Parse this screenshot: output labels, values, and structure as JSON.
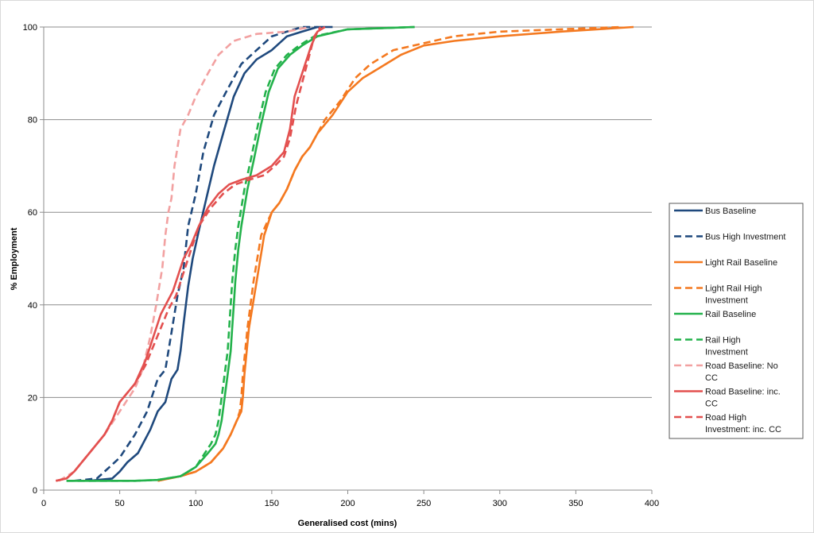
{
  "chart_data": {
    "type": "line",
    "title": "",
    "xlabel": "Generalised cost (mins)",
    "ylabel": "% Employment",
    "xlim": [
      0,
      400
    ],
    "ylim": [
      0,
      100
    ],
    "x_ticks": [
      0,
      50,
      100,
      150,
      200,
      250,
      300,
      350,
      400
    ],
    "y_ticks": [
      0,
      20,
      40,
      60,
      80,
      100
    ],
    "grid": "horizontal",
    "legend_position": "right",
    "series": [
      {
        "name": "Bus Baseline",
        "color": "#1f497d",
        "dash": "solid",
        "points": [
          [
            30,
            2
          ],
          [
            45,
            2.5
          ],
          [
            50,
            4
          ],
          [
            55,
            6
          ],
          [
            62,
            8
          ],
          [
            70,
            13
          ],
          [
            75,
            17
          ],
          [
            80,
            19
          ],
          [
            84,
            24
          ],
          [
            88,
            26
          ],
          [
            90,
            30
          ],
          [
            92,
            36
          ],
          [
            95,
            44
          ],
          [
            98,
            50
          ],
          [
            102,
            56
          ],
          [
            107,
            63
          ],
          [
            112,
            70
          ],
          [
            118,
            77
          ],
          [
            125,
            85
          ],
          [
            132,
            90
          ],
          [
            140,
            93
          ],
          [
            150,
            95
          ],
          [
            160,
            98
          ],
          [
            170,
            99
          ],
          [
            180,
            100
          ],
          [
            190,
            100
          ]
        ]
      },
      {
        "name": "Bus High Investment",
        "color": "#1f497d",
        "dash": "dashed",
        "points": [
          [
            20,
            2
          ],
          [
            35,
            2.5
          ],
          [
            40,
            4
          ],
          [
            50,
            7
          ],
          [
            60,
            12
          ],
          [
            68,
            17
          ],
          [
            75,
            24
          ],
          [
            80,
            26
          ],
          [
            84,
            34
          ],
          [
            88,
            42
          ],
          [
            92,
            48
          ],
          [
            95,
            57
          ],
          [
            100,
            64
          ],
          [
            105,
            73
          ],
          [
            112,
            81
          ],
          [
            120,
            86
          ],
          [
            130,
            92
          ],
          [
            140,
            95
          ],
          [
            150,
            98
          ],
          [
            160,
            99
          ],
          [
            170,
            100
          ],
          [
            180,
            100
          ]
        ]
      },
      {
        "name": "Light Rail Baseline",
        "color": "#f47920",
        "dash": "solid",
        "points": [
          [
            75,
            2
          ],
          [
            90,
            3
          ],
          [
            100,
            4
          ],
          [
            110,
            6
          ],
          [
            118,
            9
          ],
          [
            123,
            12
          ],
          [
            127,
            15
          ],
          [
            130,
            17
          ],
          [
            131,
            20
          ],
          [
            132,
            25
          ],
          [
            135,
            35
          ],
          [
            140,
            45
          ],
          [
            145,
            55
          ],
          [
            150,
            60
          ],
          [
            155,
            62
          ],
          [
            160,
            65
          ],
          [
            165,
            69
          ],
          [
            170,
            72
          ],
          [
            175,
            74
          ],
          [
            180,
            77
          ],
          [
            190,
            81
          ],
          [
            200,
            86
          ],
          [
            210,
            89
          ],
          [
            220,
            91
          ],
          [
            235,
            94
          ],
          [
            250,
            96
          ],
          [
            270,
            97
          ],
          [
            300,
            98
          ],
          [
            340,
            99
          ],
          [
            388,
            100
          ]
        ]
      },
      {
        "name": "Light Rail High Investment",
        "color": "#f47920",
        "dash": "dashed",
        "points": [
          [
            75,
            2
          ],
          [
            90,
            3
          ],
          [
            100,
            4
          ],
          [
            110,
            6
          ],
          [
            118,
            9
          ],
          [
            123,
            12
          ],
          [
            127,
            15
          ],
          [
            129,
            17
          ],
          [
            130,
            20
          ],
          [
            131,
            25
          ],
          [
            134,
            35
          ],
          [
            138,
            45
          ],
          [
            143,
            55
          ],
          [
            150,
            60
          ],
          [
            155,
            62
          ],
          [
            160,
            65
          ],
          [
            165,
            69
          ],
          [
            170,
            72
          ],
          [
            175,
            74
          ],
          [
            180,
            77
          ],
          [
            185,
            80
          ],
          [
            195,
            84
          ],
          [
            205,
            89
          ],
          [
            215,
            92
          ],
          [
            230,
            95
          ],
          [
            250,
            96.5
          ],
          [
            270,
            98
          ],
          [
            300,
            99
          ],
          [
            380,
            100
          ]
        ]
      },
      {
        "name": "Rail Baseline",
        "color": "#23b24b",
        "dash": "solid",
        "points": [
          [
            15,
            2
          ],
          [
            40,
            2
          ],
          [
            60,
            2
          ],
          [
            75,
            2.2
          ],
          [
            90,
            3
          ],
          [
            100,
            5
          ],
          [
            108,
            8
          ],
          [
            113,
            10
          ],
          [
            115,
            12
          ],
          [
            117,
            15
          ],
          [
            119,
            20
          ],
          [
            121,
            25
          ],
          [
            123,
            30
          ],
          [
            124,
            35
          ],
          [
            125,
            40
          ],
          [
            126,
            45
          ],
          [
            128,
            52
          ],
          [
            130,
            57
          ],
          [
            134,
            65
          ],
          [
            138,
            71
          ],
          [
            143,
            79
          ],
          [
            148,
            86
          ],
          [
            154,
            91
          ],
          [
            162,
            94
          ],
          [
            170,
            96
          ],
          [
            180,
            98
          ],
          [
            200,
            99.5
          ],
          [
            244,
            100
          ]
        ]
      },
      {
        "name": "Rail High Investment",
        "color": "#23b24b",
        "dash": "dashed",
        "points": [
          [
            15,
            2
          ],
          [
            40,
            2
          ],
          [
            60,
            2
          ],
          [
            75,
            2.2
          ],
          [
            90,
            3
          ],
          [
            100,
            5
          ],
          [
            106,
            8
          ],
          [
            110,
            10
          ],
          [
            113,
            12
          ],
          [
            115,
            15
          ],
          [
            117,
            20
          ],
          [
            119,
            25
          ],
          [
            121,
            30
          ],
          [
            122,
            35
          ],
          [
            123,
            40
          ],
          [
            124,
            45
          ],
          [
            126,
            52
          ],
          [
            128,
            57
          ],
          [
            132,
            65
          ],
          [
            136,
            71
          ],
          [
            141,
            79
          ],
          [
            146,
            86
          ],
          [
            152,
            91
          ],
          [
            160,
            94
          ],
          [
            168,
            96
          ],
          [
            178,
            98
          ],
          [
            200,
            99.5
          ],
          [
            244,
            100
          ]
        ]
      },
      {
        "name": "Road Baseline: No CC",
        "color": "#f2a1a1",
        "dash": "dashed",
        "points": [
          [
            10,
            2
          ],
          [
            20,
            4
          ],
          [
            30,
            8
          ],
          [
            40,
            12
          ],
          [
            50,
            17
          ],
          [
            60,
            22
          ],
          [
            65,
            26
          ],
          [
            70,
            33
          ],
          [
            74,
            40
          ],
          [
            78,
            48
          ],
          [
            80,
            55
          ],
          [
            82,
            60
          ],
          [
            84,
            63
          ],
          [
            86,
            70
          ],
          [
            90,
            78
          ],
          [
            95,
            81
          ],
          [
            100,
            85
          ],
          [
            108,
            90
          ],
          [
            115,
            94
          ],
          [
            125,
            97
          ],
          [
            140,
            98.5
          ],
          [
            160,
            99
          ],
          [
            175,
            100
          ]
        ]
      },
      {
        "name": "Road Baseline: inc. CC",
        "color": "#e3504f",
        "dash": "solid",
        "points": [
          [
            8,
            2
          ],
          [
            15,
            2.5
          ],
          [
            20,
            4
          ],
          [
            30,
            8
          ],
          [
            40,
            12
          ],
          [
            45,
            15
          ],
          [
            50,
            19
          ],
          [
            60,
            23
          ],
          [
            67,
            28
          ],
          [
            72,
            33
          ],
          [
            77,
            38
          ],
          [
            85,
            43
          ],
          [
            92,
            50
          ],
          [
            97,
            53
          ],
          [
            102,
            57
          ],
          [
            108,
            61
          ],
          [
            115,
            64
          ],
          [
            122,
            66
          ],
          [
            130,
            67
          ],
          [
            140,
            68
          ],
          [
            150,
            70
          ],
          [
            158,
            73
          ],
          [
            162,
            78
          ],
          [
            165,
            85
          ],
          [
            168,
            88
          ],
          [
            172,
            92
          ],
          [
            176,
            96
          ],
          [
            180,
            99
          ],
          [
            185,
            100
          ]
        ]
      },
      {
        "name": "Road High Investment: inc. CC",
        "color": "#e3504f",
        "dash": "dashed",
        "points": [
          [
            8,
            2
          ],
          [
            15,
            2.5
          ],
          [
            20,
            4
          ],
          [
            30,
            8
          ],
          [
            40,
            12
          ],
          [
            45,
            15
          ],
          [
            50,
            19
          ],
          [
            60,
            23
          ],
          [
            67,
            27
          ],
          [
            72,
            31
          ],
          [
            77,
            35
          ],
          [
            82,
            39
          ],
          [
            87,
            42
          ],
          [
            92,
            47
          ],
          [
            97,
            52
          ],
          [
            102,
            57
          ],
          [
            110,
            61
          ],
          [
            118,
            64
          ],
          [
            126,
            66
          ],
          [
            135,
            67
          ],
          [
            145,
            68
          ],
          [
            152,
            70
          ],
          [
            158,
            72
          ],
          [
            162,
            76
          ],
          [
            166,
            83
          ],
          [
            170,
            88
          ],
          [
            174,
            93
          ],
          [
            178,
            98
          ],
          [
            182,
            100
          ]
        ]
      }
    ]
  }
}
